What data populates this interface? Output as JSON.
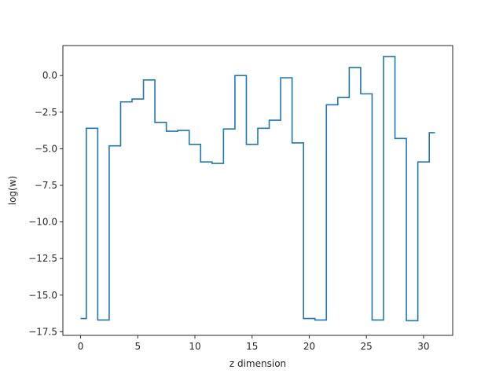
{
  "chart_data": {
    "type": "line",
    "drawstyle": "steps-mid",
    "title": "",
    "xlabel": "z dimension",
    "ylabel": "log(w)",
    "xlim": [
      -1.55,
      32.55
    ],
    "ylim": [
      -17.75,
      2.05
    ],
    "xticks": [
      0,
      5,
      10,
      15,
      20,
      25,
      30
    ],
    "xtick_labels": [
      "0",
      "5",
      "10",
      "15",
      "20",
      "25",
      "30"
    ],
    "yticks": [
      0,
      -2.5,
      -5,
      -7.5,
      -10,
      -12.5,
      -15,
      -17.5
    ],
    "ytick_labels": [
      "0.0",
      "−2.5",
      "−5.0",
      "−7.5",
      "−10.0",
      "−12.5",
      "−15.0",
      "−17.5"
    ],
    "grid": false,
    "legend": "none",
    "series": [
      {
        "color": "#1f77b4",
        "x": [
          0,
          1,
          2,
          3,
          4,
          5,
          6,
          7,
          8,
          9,
          10,
          11,
          12,
          13,
          14,
          15,
          16,
          17,
          18,
          19,
          20,
          21,
          22,
          23,
          24,
          25,
          26,
          27,
          28,
          29,
          30,
          31
        ],
        "y": [
          -16.6,
          -3.6,
          -16.7,
          -4.8,
          -1.8,
          -1.6,
          -0.3,
          -3.2,
          -3.8,
          -3.75,
          -4.7,
          -5.9,
          -6.0,
          -3.65,
          0.0,
          -4.7,
          -3.6,
          -3.05,
          -0.15,
          -4.6,
          -16.6,
          -16.7,
          -2.0,
          -1.5,
          0.55,
          -1.25,
          -16.7,
          1.3,
          -4.3,
          -16.75,
          -5.9,
          -3.9
        ]
      }
    ]
  }
}
